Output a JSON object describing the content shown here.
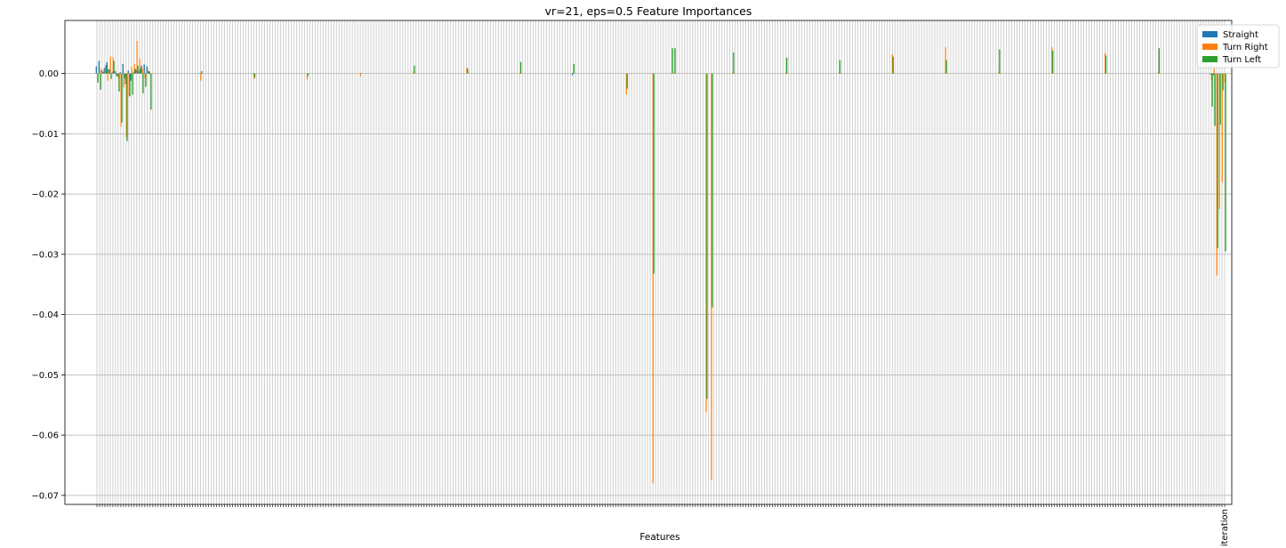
{
  "chart_data": {
    "type": "bar",
    "title": "vr=21, eps=0.5 Feature Importances",
    "xlabel": "Features",
    "ylabel": "",
    "ylim": [
      -0.0715,
      0.0088
    ],
    "yticks": [
      0.0,
      -0.01,
      -0.02,
      -0.03,
      -0.04,
      -0.05,
      -0.06,
      -0.07
    ],
    "ytick_labels": [
      "0.00",
      "−0.01",
      "−0.02",
      "−0.03",
      "−0.04",
      "−0.05",
      "−0.06",
      "−0.07"
    ],
    "grid": true,
    "legend_position": "top-right",
    "n_features": 425,
    "last_label": "iteration",
    "series": [
      {
        "name": "Straight",
        "color": "#1f77b4"
      },
      {
        "name": "Turn Right",
        "color": "#ff7f0e"
      },
      {
        "name": "Turn Left",
        "color": "#2ca02c"
      }
    ],
    "bars": [
      [
        0,
        0.0012,
        0.0001,
        -0.0015
      ],
      [
        1,
        0.0021,
        0.001,
        -0.0027
      ],
      [
        2,
        0.0006,
        0.0002,
        0.0003
      ],
      [
        3,
        0.0009,
        0.0006,
        0.0014
      ],
      [
        4,
        0.0019,
        -0.0012,
        0.0007
      ],
      [
        5,
        0.0007,
        0.0028,
        -0.0009
      ],
      [
        6,
        0.0003,
        0.0027,
        0.0021
      ],
      [
        7,
        0.0004,
        0.0004,
        -0.0004
      ],
      [
        8,
        -0.0005,
        -0.0008,
        -0.003
      ],
      [
        9,
        0.0002,
        -0.0088,
        -0.0081
      ],
      [
        10,
        0.0016,
        -0.0023,
        -0.0008
      ],
      [
        11,
        -0.0018,
        -0.0105,
        -0.0112
      ],
      [
        12,
        0.0005,
        -0.0037,
        -0.0038
      ],
      [
        13,
        -0.0012,
        0.0011,
        -0.0035
      ],
      [
        14,
        0.0003,
        0.0016,
        0.0008
      ],
      [
        15,
        0.0006,
        0.0054,
        0.0013
      ],
      [
        16,
        0.0004,
        0.0025,
        0.0008
      ],
      [
        17,
        0.0013,
        0.0008,
        -0.0033
      ],
      [
        18,
        0.0015,
        -0.0008,
        -0.0022
      ],
      [
        19,
        0.0012,
        0.0009,
        0.0004
      ],
      [
        20,
        0.0003,
        -0.0002,
        -0.006
      ],
      [
        39,
        0.0001,
        -0.0012,
        0.0004
      ],
      [
        59,
        -0.0001,
        -0.0009,
        -0.0007
      ],
      [
        79,
        0.0,
        -0.001,
        -0.0004
      ],
      [
        99,
        0.0,
        -0.0005,
        0.0001
      ],
      [
        119,
        0.0,
        0.0003,
        0.0013
      ],
      [
        139,
        0.0,
        0.001,
        0.0008
      ],
      [
        159,
        0.0,
        0.0002,
        0.0019
      ],
      [
        179,
        -0.0003,
        0.0002,
        0.0016
      ],
      [
        199,
        0.0,
        -0.0035,
        -0.0025
      ],
      [
        209,
        0.0,
        -0.068,
        -0.0332
      ],
      [
        216,
        0.0,
        0.0001,
        0.0042
      ],
      [
        217,
        0.0,
        0.0002,
        0.0042
      ],
      [
        229,
        0.0,
        -0.0562,
        -0.054
      ],
      [
        231,
        0.0,
        -0.0675,
        -0.0388
      ],
      [
        239,
        0.0,
        0.0002,
        0.0035
      ],
      [
        259,
        0.0,
        0.0002,
        0.0026
      ],
      [
        279,
        0.0,
        0.0002,
        0.0022
      ],
      [
        299,
        0.0,
        0.0032,
        0.0028
      ],
      [
        319,
        0.0,
        0.0044,
        0.0022
      ],
      [
        339,
        0.0,
        0.0003,
        0.004
      ],
      [
        359,
        0.0,
        0.0044,
        0.0038
      ],
      [
        379,
        0.0,
        0.0034,
        0.003
      ],
      [
        399,
        0.0,
        0.0002,
        0.0042
      ],
      [
        419,
        -0.0002,
        -0.0012,
        -0.0055
      ],
      [
        420,
        -0.0003,
        0.0008,
        -0.0087
      ],
      [
        421,
        -0.0001,
        -0.0335,
        -0.029
      ],
      [
        422,
        0.0,
        -0.0225,
        -0.0085
      ],
      [
        423,
        0.0,
        -0.018,
        -0.0028
      ],
      [
        424,
        0.0,
        -0.0015,
        -0.0295
      ]
    ]
  }
}
